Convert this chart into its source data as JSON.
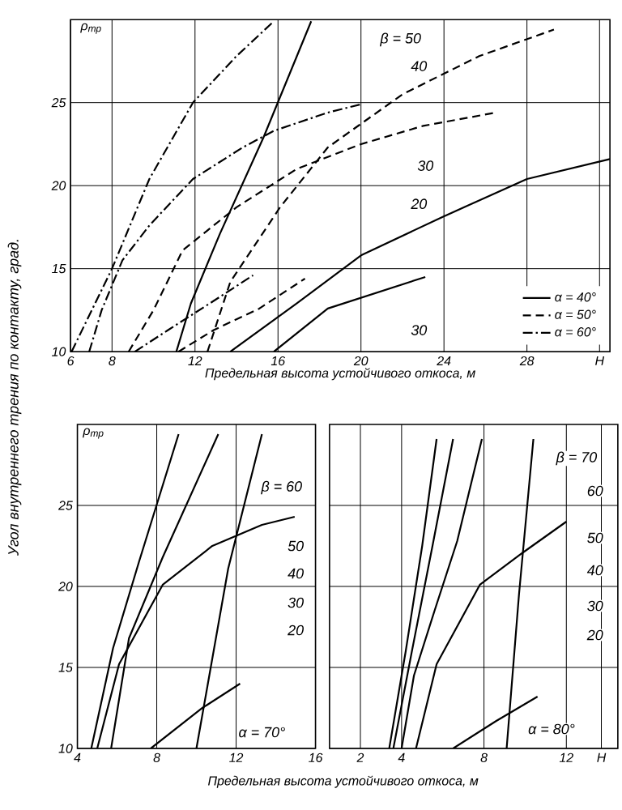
{
  "chart_data": [
    {
      "type": "line",
      "ylabel": "ρ$_{тр}$",
      "xlabel": "Предельная высота устойчивого откоса, м",
      "xlim": [
        6,
        32
      ],
      "ylim": [
        10,
        30
      ],
      "xticks": [
        6,
        8,
        12,
        16,
        20,
        24,
        28,
        {
          "value": 31.5,
          "label": "H"
        }
      ],
      "yticks": [
        10,
        15,
        20,
        25
      ],
      "grid": true,
      "legend": "bottom right",
      "series": [
        {
          "name": "α = 40°",
          "color": "#000000",
          "line_style": "solid",
          "x": [
            13.7,
            16.9,
            20,
            23.9,
            28,
            32
          ],
          "values": [
            10,
            12.9,
            15.8,
            18.1,
            20.4,
            21.6
          ]
        },
        {
          "name": "α = 50°",
          "color": "#000000",
          "line_style": "dashed",
          "x": [
            8.8,
            10,
            11.4,
            14,
            16.9,
            20,
            23,
            26.5
          ],
          "values": [
            10,
            12.5,
            16.1,
            18.7,
            21,
            22.5,
            23.6,
            24.4
          ]
        },
        {
          "name": "α = 60°",
          "color": "#000000",
          "line_style": "dashdot",
          "x": [
            6.05,
            8,
            9.8,
            11.9,
            14,
            15.8
          ],
          "values": [
            10,
            15,
            20.4,
            25,
            27.8,
            29.9
          ]
        },
        {
          "color": "#000000",
          "line_style": "dashdot",
          "x": [
            6.9,
            7.5,
            8.5,
            9.8,
            11.9,
            14.3,
            15.8,
            18.4,
            20
          ],
          "values": [
            10,
            12.5,
            15.5,
            17.6,
            20.4,
            22.3,
            23.3,
            24.4,
            24.9
          ]
        },
        {
          "color": "#000000",
          "line_style": "dashed",
          "x": [
            12.6,
            13.7,
            16.1,
            18.4,
            22,
            25.7,
            29.3
          ],
          "values": [
            10,
            14.2,
            18.7,
            22.3,
            25.5,
            27.8,
            29.4
          ]
        },
        {
          "color": "#000000",
          "line_style": "dashdot",
          "x": [
            9.1,
            10.7,
            12.7,
            14.8
          ],
          "values": [
            10,
            11.3,
            12.9,
            14.6
          ]
        },
        {
          "color": "#000000",
          "line_style": "dashed",
          "x": [
            11.2,
            12.9,
            15.1,
            17.3
          ],
          "values": [
            10,
            11.3,
            12.6,
            14.4
          ]
        },
        {
          "color": "#000000",
          "line_style": "solid",
          "x": [
            11.1,
            11.8,
            13.2,
            15.3,
            17.6
          ],
          "values": [
            10,
            12.9,
            17.1,
            22.9,
            29.9
          ]
        },
        {
          "color": "#000000",
          "line_style": "solid",
          "x": [
            15.8,
            18.4,
            23.1
          ],
          "values": [
            10,
            12.6,
            14.5
          ]
        }
      ],
      "annotations": [
        "Угол внутреннего трения по контакту, град.",
        "β = 50",
        "40",
        "30",
        "20",
        "30"
      ]
    },
    {
      "type": "line",
      "ylabel": "ρ$_{тр}$",
      "xlabel": "Предельная высота устойчивого откоса, м",
      "xlim": [
        4,
        16
      ],
      "ylim": [
        10,
        30
      ],
      "xticks": [
        4,
        8,
        12,
        16
      ],
      "yticks": [
        10,
        15,
        20,
        25
      ],
      "grid": true,
      "series": [
        {
          "color": "#000000",
          "x": [
            4.7,
            5.8,
            7.1,
            9.1
          ],
          "values": [
            10,
            16.2,
            21.5,
            29.4
          ]
        },
        {
          "color": "#000000",
          "x": [
            5.7,
            6.6,
            8.3,
            11.1
          ],
          "values": [
            10,
            16.8,
            21.8,
            29.4
          ]
        },
        {
          "color": "#000000",
          "x": [
            5,
            6.1,
            8.3,
            10.8,
            13.3,
            14.95
          ],
          "values": [
            10,
            15.2,
            20.1,
            22.5,
            23.8,
            24.3
          ]
        },
        {
          "color": "#000000",
          "x": [
            10,
            11.6,
            13.3
          ],
          "values": [
            10,
            21.1,
            29.4
          ]
        },
        {
          "color": "#000000",
          "x": [
            7.7,
            10.3,
            12.2
          ],
          "values": [
            10,
            12.5,
            14
          ]
        }
      ],
      "annotations": [
        "β = 60",
        "50",
        "40",
        "30",
        "20",
        "α = 70°"
      ]
    },
    {
      "type": "line",
      "xlim": [
        0.5,
        14.5
      ],
      "ylim": [
        10,
        30
      ],
      "xticks": [
        2,
        4,
        8,
        12,
        {
          "value": 13.7,
          "label": "H"
        }
      ],
      "yticks": [
        10,
        15,
        20,
        25
      ],
      "grid": true,
      "tick_labels": "x",
      "series": [
        {
          "color": "#000000",
          "x": [
            3.4,
            4.2,
            5,
            5.7
          ],
          "values": [
            10,
            16,
            22.5,
            29.1
          ]
        },
        {
          "color": "#000000",
          "x": [
            3.6,
            4.5,
            5.5,
            6.5
          ],
          "values": [
            10,
            16,
            22.5,
            29.1
          ]
        },
        {
          "color": "#000000",
          "x": [
            4,
            4.6,
            5.6,
            6.7,
            7.9
          ],
          "values": [
            10,
            14.5,
            18.5,
            22.8,
            29.1
          ]
        },
        {
          "color": "#000000",
          "x": [
            4.7,
            5.7,
            7.8,
            9.9,
            12
          ],
          "values": [
            10,
            15.2,
            20.1,
            22.1,
            24
          ]
        },
        {
          "color": "#000000",
          "x": [
            9.1,
            9.7,
            10.4
          ],
          "values": [
            10,
            19.5,
            29.1
          ]
        },
        {
          "color": "#000000",
          "x": [
            6.5,
            8.6,
            10.6
          ],
          "values": [
            10,
            11.7,
            13.2
          ]
        }
      ],
      "annotations": [
        "β = 70",
        "60",
        "50",
        "40",
        "30",
        "20",
        "α = 80°"
      ]
    }
  ]
}
